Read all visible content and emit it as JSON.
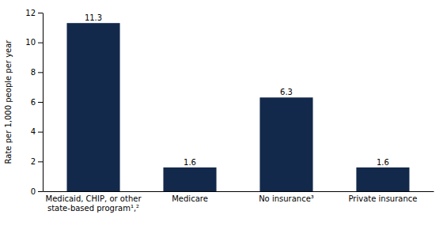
{
  "chart_data": {
    "type": "bar",
    "categories": [
      "Medicaid, CHIP, or other\nstate-based program¹,²",
      "Medicare",
      "No insurance³",
      "Private insurance"
    ],
    "values": [
      11.3,
      1.6,
      6.3,
      1.6
    ],
    "color": "#13294B",
    "ylabel": "Rate per 1,000 people per year",
    "ylim": [
      0,
      12
    ],
    "yticks": [
      0,
      2,
      4,
      6,
      8,
      10,
      12
    ],
    "grid": false,
    "data_labels": true
  }
}
